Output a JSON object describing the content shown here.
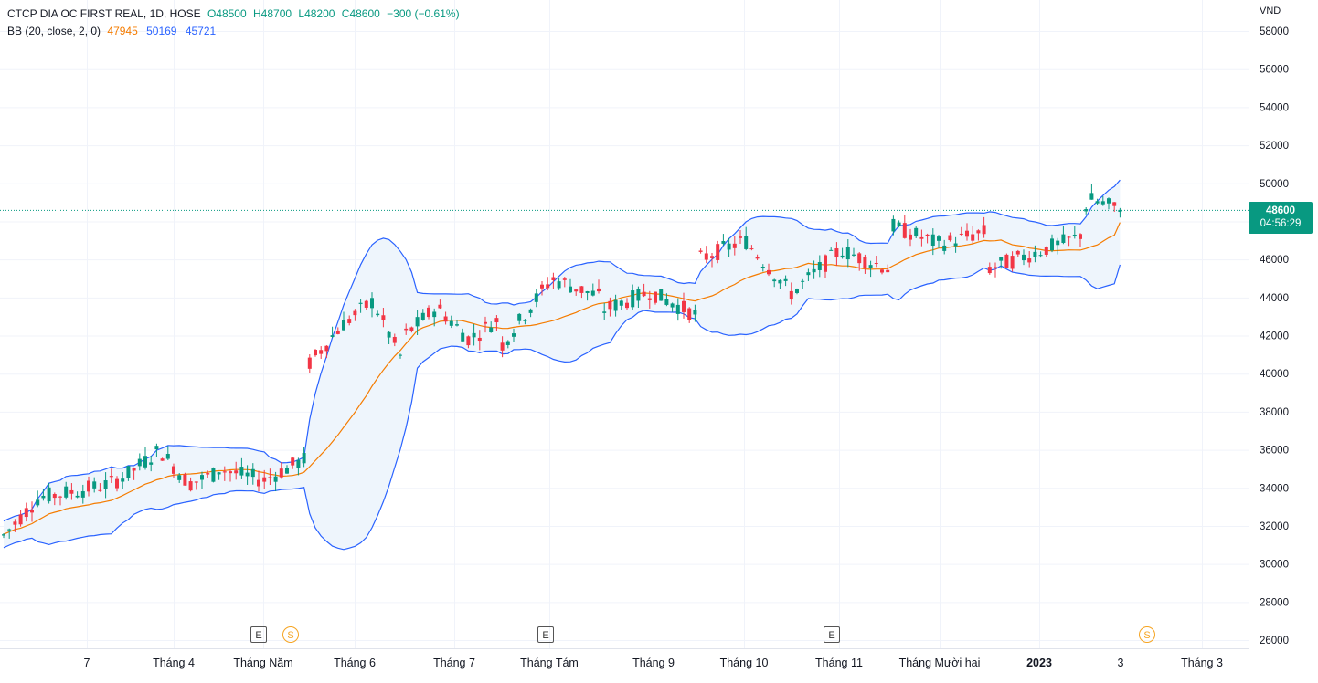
{
  "legend": {
    "symbol_line": "CTCP DIA OC FIRST REAL, 1D, HOSE",
    "open": "O48500",
    "high": "H48700",
    "low": "L48200",
    "close": "C48600",
    "change": "−300 (−0.61%)",
    "bb_label": "BB (20, close, 2, 0)",
    "bb_mid": "47945",
    "bb_upper": "50169",
    "bb_lower": "45721"
  },
  "price_scale": {
    "currency": "VND",
    "ticks": [
      "58000",
      "56000",
      "54000",
      "52000",
      "50000",
      "48000",
      "46000",
      "44000",
      "42000",
      "40000",
      "38000",
      "36000",
      "34000",
      "32000",
      "30000",
      "28000",
      "26000"
    ]
  },
  "last_price": {
    "value": "48600",
    "countdown": "04:56:29"
  },
  "time_axis": {
    "labels": [
      "7",
      "Tháng 4",
      "Tháng Năm",
      "Tháng 6",
      "Tháng 7",
      "Tháng Tám",
      "Tháng 9",
      "Tháng 10",
      "Tháng 11",
      "Tháng Mười hai",
      "2023",
      "3",
      "Tháng 3"
    ]
  },
  "markers": [
    {
      "type": "E",
      "label": "E"
    },
    {
      "type": "S",
      "label": "S"
    },
    {
      "type": "E",
      "label": "E"
    },
    {
      "type": "E",
      "label": "E"
    },
    {
      "type": "S",
      "label": "S"
    }
  ],
  "colors": {
    "up": "#089981",
    "down": "#f23645",
    "mid": "#f57c00",
    "band": "#2962ff",
    "fill": "#eef5fc"
  },
  "chart_data": {
    "type": "candlestick",
    "y_unit": "VND",
    "ylim": [
      25500,
      59000
    ],
    "grid": true,
    "series": [
      {
        "name": "CTCP DIA OC FIRST REAL",
        "close_anchors": [
          [
            "7",
            31500
          ],
          [
            "7",
            33500
          ],
          [
            "7",
            33800
          ],
          [
            "7",
            34200
          ],
          [
            "Tháng 4",
            34800
          ],
          [
            "Tháng 4",
            36000
          ],
          [
            "Tháng 4",
            34200
          ],
          [
            "Tháng 4",
            34800
          ],
          [
            "Tháng Năm",
            35000
          ],
          [
            "Tháng Năm",
            34400
          ],
          [
            "Tháng Năm",
            35600
          ],
          [
            "Tháng 6",
            40500
          ],
          [
            "Tháng 6",
            42500
          ],
          [
            "Tháng 6",
            43800
          ],
          [
            "Tháng 6",
            40500
          ],
          [
            "Tháng 7",
            42000
          ],
          [
            "Tháng 7",
            43500
          ],
          [
            "Tháng 7",
            41800
          ],
          [
            "Tháng 7",
            43000
          ],
          [
            "Tháng Tám",
            41500
          ],
          [
            "Tháng Tám",
            45000
          ],
          [
            "Tháng Tám",
            44000
          ],
          [
            "Tháng 9",
            43300
          ],
          [
            "Tháng 9",
            44300
          ],
          [
            "Tháng 9",
            43000
          ],
          [
            "Tháng 10",
            46000
          ],
          [
            "Tháng 10",
            47000
          ],
          [
            "Tháng 10",
            44200
          ],
          [
            "Tháng 11",
            44200
          ],
          [
            "Tháng 11",
            46500
          ],
          [
            "Tháng 11",
            45500
          ],
          [
            "Tháng Mười hai",
            47800
          ],
          [
            "Tháng Mười hai",
            46800
          ],
          [
            "Tháng Mười hai",
            47500
          ],
          [
            "2023",
            45500
          ],
          [
            "2023",
            47200
          ],
          [
            "3",
            49200
          ],
          [
            "3",
            48600
          ]
        ]
      },
      {
        "name": "BB basis",
        "ref": "legend.bb_mid"
      },
      {
        "name": "BB upper",
        "ref": "legend.bb_upper"
      },
      {
        "name": "BB lower",
        "ref": "legend.bb_lower"
      }
    ],
    "last_close": 48600
  }
}
